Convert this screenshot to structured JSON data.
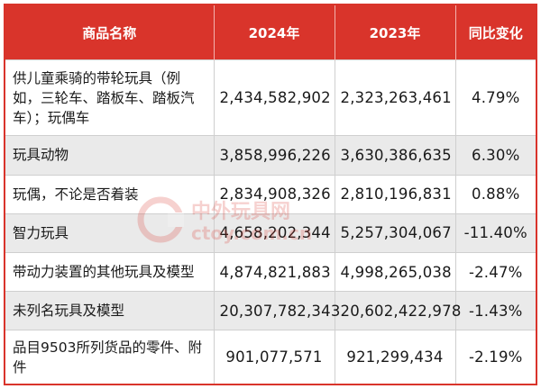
{
  "table": {
    "headers": [
      "商品名称",
      "2024年",
      "2023年",
      "同比变化"
    ],
    "rows": [
      {
        "name": "供儿童乘骑的带轮玩具（例如，三轮车、踏板车、踏板汽车）；玩偶车",
        "y2024": "2,434,582,902",
        "y2023": "2,323,263,461",
        "change": "4.79%"
      },
      {
        "name": "玩具动物",
        "y2024": "3,858,996,226",
        "y2023": "3,630,386,635",
        "change": "6.30%"
      },
      {
        "name": "玩偶，不论是否着装",
        "y2024": "2,834,908,326",
        "y2023": "2,810,196,831",
        "change": "0.88%"
      },
      {
        "name": "智力玩具",
        "y2024": "4,658,202,344",
        "y2023": "5,257,304,067",
        "change": "-11.40%"
      },
      {
        "name": "带动力装置的其他玩具及模型",
        "y2024": "4,874,821,883",
        "y2023": "4,998,265,038",
        "change": "-2.47%"
      },
      {
        "name": "未列名玩具及模型",
        "y2024": "20,307,782,343",
        "y2023": "20,602,422,978",
        "change": "-1.43%"
      },
      {
        "name": "品目9503所列货品的零件、附件",
        "y2024": "901,077,571",
        "y2023": "921,299,434",
        "change": "-2.19%"
      }
    ]
  },
  "watermark": {
    "text": "中外玩具网",
    "subtext": "ctoy.com.cn",
    "color": "#d9342b"
  },
  "colors": {
    "header_bg": "#d9342b",
    "alt_row_bg": "#eaeaea",
    "border": "#d9342b"
  }
}
